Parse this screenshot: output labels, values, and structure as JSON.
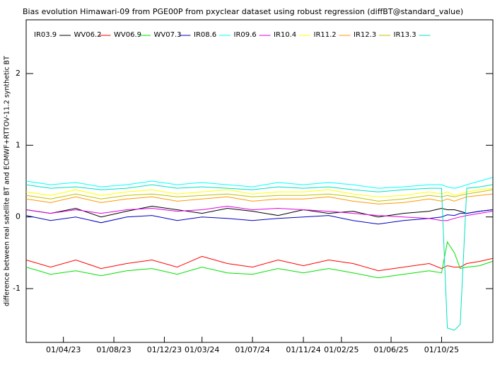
{
  "chart_data": {
    "type": "line",
    "title": "Bias evolution Himawari-09 from PGE00P from pxyclear dataset using robust regression (diffBT@standard_value)",
    "y_label": "difference between real satellite BT and ECMWF+RTTOV-11.2 synthetic BT",
    "x": [
      "2023-01-01",
      "2023-03-01",
      "2023-05-01",
      "2023-07-01",
      "2023-09-01",
      "2023-11-01",
      "2024-01-01",
      "2024-03-01",
      "2024-05-01",
      "2024-07-01",
      "2024-09-01",
      "2024-11-01",
      "2025-01-01",
      "2025-03-01",
      "2025-05-01",
      "2025-07-01",
      "2025-09-01",
      "2025-10-01",
      "2025-10-15",
      "2025-11-01",
      "2025-11-15",
      "2025-12-01",
      "2026-01-01",
      "2026-02-01"
    ],
    "xlim": [
      "2023-01-01",
      "2026-02-02"
    ],
    "xticks": [
      {
        "value": "2023-04-01",
        "label": "01/04/23"
      },
      {
        "value": "2023-08-01",
        "label": "01/08/23"
      },
      {
        "value": "2023-12-01",
        "label": "01/12/23"
      },
      {
        "value": "2024-03-01",
        "label": "01/03/24"
      },
      {
        "value": "2024-07-01",
        "label": "01/07/24"
      },
      {
        "value": "2024-11-01",
        "label": "01/11/24"
      },
      {
        "value": "2025-02-01",
        "label": "01/02/25"
      },
      {
        "value": "2025-06-01",
        "label": "01/06/25"
      },
      {
        "value": "2025-10-01",
        "label": "01/10/25"
      }
    ],
    "ylim": [
      -1.75,
      2.75
    ],
    "yticks": [
      -1,
      0,
      1,
      2
    ],
    "series": [
      {
        "name": "IR03.9",
        "color": "#000000",
        "values": [
          0.1,
          0.05,
          0.12,
          0.0,
          0.08,
          0.15,
          0.1,
          0.05,
          0.12,
          0.08,
          0.02,
          0.1,
          0.05,
          0.08,
          0.0,
          0.05,
          0.08,
          0.12,
          0.1,
          0.1,
          0.08,
          0.05,
          0.08,
          0.1
        ]
      },
      {
        "name": "WV06.2",
        "color": "#ff0000",
        "values": [
          -0.6,
          -0.7,
          -0.6,
          -0.72,
          -0.65,
          -0.6,
          -0.7,
          -0.55,
          -0.65,
          -0.7,
          -0.6,
          -0.68,
          -0.6,
          -0.65,
          -0.75,
          -0.7,
          -0.65,
          -0.72,
          -0.68,
          -0.7,
          -0.7,
          -0.65,
          -0.62,
          -0.58
        ]
      },
      {
        "name": "WV06.9",
        "color": "#00e000",
        "values": [
          -0.7,
          -0.8,
          -0.75,
          -0.82,
          -0.75,
          -0.72,
          -0.8,
          -0.7,
          -0.78,
          -0.8,
          -0.72,
          -0.78,
          -0.72,
          -0.78,
          -0.85,
          -0.8,
          -0.75,
          -0.78,
          -0.35,
          -0.5,
          -0.72,
          -0.7,
          -0.68,
          -0.62
        ]
      },
      {
        "name": "WV07.3",
        "color": "#0000c0",
        "values": [
          0.02,
          -0.05,
          0.0,
          -0.08,
          0.0,
          0.02,
          -0.05,
          0.0,
          -0.02,
          -0.05,
          -0.02,
          0.0,
          0.02,
          -0.05,
          -0.1,
          -0.05,
          -0.02,
          0.0,
          0.03,
          0.02,
          0.05,
          0.05,
          0.08,
          0.1
        ]
      },
      {
        "name": "IR08.6",
        "color": "#00ffff",
        "values": [
          0.5,
          0.45,
          0.48,
          0.42,
          0.45,
          0.5,
          0.45,
          0.48,
          0.45,
          0.42,
          0.48,
          0.45,
          0.48,
          0.45,
          0.4,
          0.42,
          0.45,
          0.45,
          0.42,
          0.4,
          0.42,
          0.45,
          0.5,
          0.55
        ]
      },
      {
        "name": "IR09.6",
        "color": "#e000e0",
        "values": [
          0.1,
          0.05,
          0.1,
          0.05,
          0.1,
          0.12,
          0.08,
          0.1,
          0.15,
          0.1,
          0.12,
          0.1,
          0.08,
          0.05,
          0.02,
          0.0,
          -0.02,
          -0.05,
          -0.05,
          -0.02,
          0.0,
          0.02,
          0.05,
          0.08
        ]
      },
      {
        "name": "IR10.4",
        "color": "#ffff00",
        "values": [
          0.35,
          0.3,
          0.38,
          0.3,
          0.35,
          0.38,
          0.32,
          0.35,
          0.38,
          0.32,
          0.35,
          0.35,
          0.38,
          0.32,
          0.28,
          0.3,
          0.35,
          0.32,
          0.35,
          0.3,
          0.32,
          0.35,
          0.38,
          0.4
        ]
      },
      {
        "name": "IR11.2",
        "color": "#ff9900",
        "values": [
          0.25,
          0.2,
          0.28,
          0.2,
          0.25,
          0.28,
          0.22,
          0.25,
          0.28,
          0.22,
          0.25,
          0.25,
          0.28,
          0.22,
          0.18,
          0.2,
          0.25,
          0.22,
          0.25,
          0.22,
          0.25,
          0.28,
          0.3,
          0.32
        ]
      },
      {
        "name": "IR12.3",
        "color": "#c0c000",
        "values": [
          0.3,
          0.25,
          0.32,
          0.25,
          0.3,
          0.32,
          0.28,
          0.3,
          0.32,
          0.28,
          0.3,
          0.3,
          0.32,
          0.28,
          0.22,
          0.25,
          0.3,
          0.28,
          0.3,
          0.28,
          0.3,
          0.32,
          0.35,
          0.38
        ]
      },
      {
        "name": "IR13.3",
        "color": "#00e0c0",
        "values": [
          0.45,
          0.4,
          0.42,
          0.38,
          0.4,
          0.45,
          0.4,
          0.42,
          0.4,
          0.38,
          0.42,
          0.4,
          0.42,
          0.38,
          0.35,
          0.38,
          0.4,
          0.4,
          -1.55,
          -1.58,
          -1.5,
          0.4,
          0.42,
          0.45
        ]
      }
    ]
  }
}
